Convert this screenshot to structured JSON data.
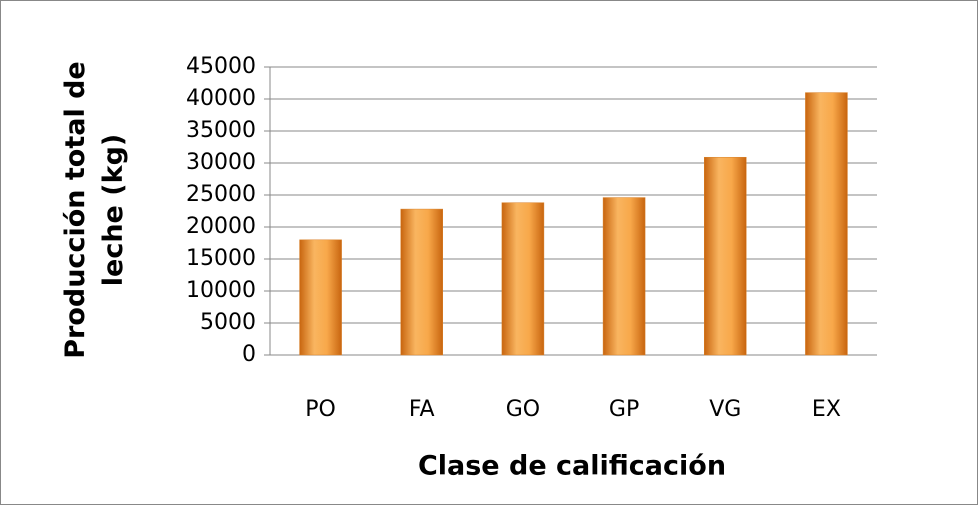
{
  "chart_data": {
    "type": "bar",
    "x_label": "Clase de calificación",
    "y_label": "Producción total de leche (kg)",
    "categories": [
      "PO",
      "FA",
      "GO",
      "GP",
      "VG",
      "EX"
    ],
    "values": [
      18000,
      22800,
      23800,
      24600,
      30900,
      41000
    ],
    "color": "#f39a35",
    "ylim": [
      0,
      45000
    ],
    "yticks": [
      0,
      5000,
      10000,
      15000,
      20000,
      25000,
      30000,
      35000,
      40000,
      45000
    ],
    "grid": true
  }
}
